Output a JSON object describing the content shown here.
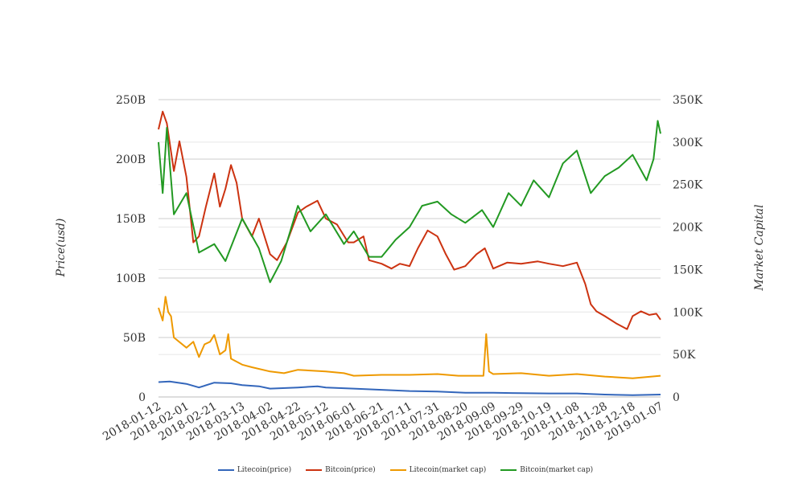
{
  "chart_data": {
    "type": "line",
    "title": "",
    "ylabel_left": "Price(usd)",
    "ylabel_right": "Market Capital",
    "x_start": "2018-01-12",
    "x_end": "2019-01-07",
    "x_ticks": [
      "2018-01-12",
      "2018-02-01",
      "2018-02-21",
      "2018-03-13",
      "2018-04-02",
      "2018-04-22",
      "2018-05-12",
      "2018-06-01",
      "2018-06-21",
      "2018-07-11",
      "2018-07-31",
      "2018-08-20",
      "2018-09-09",
      "2018-09-29",
      "2018-10-19",
      "2018-11-08",
      "2018-11-28",
      "2018-12-18",
      "2019-01-07"
    ],
    "ylim_left": [
      0,
      250000000000
    ],
    "ylim_right": [
      0,
      350000
    ],
    "y_ticks_left": [
      "0",
      "50B",
      "100B",
      "150B",
      "200B",
      "250B"
    ],
    "y_ticks_right": [
      "0",
      "50K",
      "100K",
      "150K",
      "200K",
      "250K",
      "300K",
      "350K"
    ],
    "grid": true,
    "legend_position": "bottom",
    "series": [
      {
        "name": "Litecoin(price)",
        "axis": "left",
        "color": "#3366bb",
        "points": [
          [
            "2018-01-12",
            12500000000.0
          ],
          [
            "2018-01-20",
            13000000000.0
          ],
          [
            "2018-02-01",
            11000000000.0
          ],
          [
            "2018-02-10",
            8000000000.0
          ],
          [
            "2018-02-21",
            12000000000.0
          ],
          [
            "2018-03-05",
            11500000000.0
          ],
          [
            "2018-03-13",
            10000000000.0
          ],
          [
            "2018-03-25",
            9000000000.0
          ],
          [
            "2018-04-02",
            7000000000.0
          ],
          [
            "2018-04-22",
            8000000000.0
          ],
          [
            "2018-05-06",
            9000000000.0
          ],
          [
            "2018-05-12",
            8000000000.0
          ],
          [
            "2018-06-01",
            7000000000.0
          ],
          [
            "2018-06-21",
            6000000000.0
          ],
          [
            "2018-07-11",
            5000000000.0
          ],
          [
            "2018-07-31",
            4500000000.0
          ],
          [
            "2018-08-20",
            3500000000.0
          ],
          [
            "2018-09-09",
            3500000000.0
          ],
          [
            "2018-09-29",
            3200000000.0
          ],
          [
            "2018-10-19",
            3000000000.0
          ],
          [
            "2018-11-08",
            3000000000.0
          ],
          [
            "2018-11-28",
            2000000000.0
          ],
          [
            "2018-12-18",
            1500000000.0
          ],
          [
            "2019-01-07",
            2000000000.0
          ]
        ]
      },
      {
        "name": "Bitcoin(price)",
        "axis": "left",
        "color": "#cc3311",
        "points": [
          [
            "2018-01-12",
            225000000000.0
          ],
          [
            "2018-01-15",
            240000000000.0
          ],
          [
            "2018-01-18",
            230000000000.0
          ],
          [
            "2018-01-23",
            190000000000.0
          ],
          [
            "2018-01-27",
            215000000000.0
          ],
          [
            "2018-02-01",
            185000000000.0
          ],
          [
            "2018-02-06",
            130000000000.0
          ],
          [
            "2018-02-10",
            135000000000.0
          ],
          [
            "2018-02-15",
            160000000000.0
          ],
          [
            "2018-02-21",
            188000000000.0
          ],
          [
            "2018-02-25",
            160000000000.0
          ],
          [
            "2018-03-01",
            175000000000.0
          ],
          [
            "2018-03-05",
            195000000000.0
          ],
          [
            "2018-03-09",
            180000000000.0
          ],
          [
            "2018-03-13",
            150000000000.0
          ],
          [
            "2018-03-20",
            135000000000.0
          ],
          [
            "2018-03-25",
            150000000000.0
          ],
          [
            "2018-04-02",
            120000000000.0
          ],
          [
            "2018-04-07",
            115000000000.0
          ],
          [
            "2018-04-14",
            130000000000.0
          ],
          [
            "2018-04-22",
            155000000000.0
          ],
          [
            "2018-04-28",
            160000000000.0
          ],
          [
            "2018-05-06",
            165000000000.0
          ],
          [
            "2018-05-12",
            150000000000.0
          ],
          [
            "2018-05-20",
            145000000000.0
          ],
          [
            "2018-05-28",
            130000000000.0
          ],
          [
            "2018-06-01",
            130000000000.0
          ],
          [
            "2018-06-08",
            135000000000.0
          ],
          [
            "2018-06-12",
            115000000000.0
          ],
          [
            "2018-06-21",
            112000000000.0
          ],
          [
            "2018-06-28",
            108000000000.0
          ],
          [
            "2018-07-04",
            112000000000.0
          ],
          [
            "2018-07-11",
            110000000000.0
          ],
          [
            "2018-07-17",
            125000000000.0
          ],
          [
            "2018-07-24",
            140000000000.0
          ],
          [
            "2018-07-31",
            135000000000.0
          ],
          [
            "2018-08-06",
            120000000000.0
          ],
          [
            "2018-08-12",
            107000000000.0
          ],
          [
            "2018-08-20",
            110000000000.0
          ],
          [
            "2018-08-28",
            120000000000.0
          ],
          [
            "2018-09-03",
            125000000000.0
          ],
          [
            "2018-09-09",
            108000000000.0
          ],
          [
            "2018-09-19",
            113000000000.0
          ],
          [
            "2018-09-29",
            112000000000.0
          ],
          [
            "2018-10-11",
            114000000000.0
          ],
          [
            "2018-10-19",
            112000000000.0
          ],
          [
            "2018-10-29",
            110000000000.0
          ],
          [
            "2018-11-08",
            113000000000.0
          ],
          [
            "2018-11-14",
            95000000000.0
          ],
          [
            "2018-11-18",
            78000000000.0
          ],
          [
            "2018-11-22",
            72000000000.0
          ],
          [
            "2018-11-28",
            68000000000.0
          ],
          [
            "2018-12-06",
            62000000000.0
          ],
          [
            "2018-12-14",
            57000000000.0
          ],
          [
            "2018-12-18",
            68000000000.0
          ],
          [
            "2018-12-24",
            72000000000.0
          ],
          [
            "2018-12-30",
            69000000000.0
          ],
          [
            "2019-01-04",
            70000000000.0
          ],
          [
            "2019-01-07",
            65000000000.0
          ]
        ]
      },
      {
        "name": "Litecoin(market cap)",
        "axis": "right",
        "color": "#ee9900",
        "points": [
          [
            "2018-01-12",
            105000
          ],
          [
            "2018-01-15",
            90000
          ],
          [
            "2018-01-17",
            118000
          ],
          [
            "2018-01-19",
            100000
          ],
          [
            "2018-01-21",
            95000
          ],
          [
            "2018-01-23",
            70000
          ],
          [
            "2018-02-01",
            58000
          ],
          [
            "2018-02-06",
            65000
          ],
          [
            "2018-02-10",
            47000
          ],
          [
            "2018-02-14",
            62000
          ],
          [
            "2018-02-18",
            65000
          ],
          [
            "2018-02-21",
            73000
          ],
          [
            "2018-02-25",
            50000
          ],
          [
            "2018-03-01",
            55000
          ],
          [
            "2018-03-03",
            74000
          ],
          [
            "2018-03-05",
            45000
          ],
          [
            "2018-03-13",
            38000
          ],
          [
            "2018-03-20",
            35000
          ],
          [
            "2018-04-02",
            30000
          ],
          [
            "2018-04-12",
            28000
          ],
          [
            "2018-04-22",
            32000
          ],
          [
            "2018-05-12",
            30000
          ],
          [
            "2018-05-25",
            28000
          ],
          [
            "2018-06-01",
            25000
          ],
          [
            "2018-06-21",
            26000
          ],
          [
            "2018-07-11",
            26000
          ],
          [
            "2018-07-31",
            27000
          ],
          [
            "2018-08-15",
            25000
          ],
          [
            "2018-09-02",
            25000
          ],
          [
            "2018-09-04",
            74000
          ],
          [
            "2018-09-06",
            30000
          ],
          [
            "2018-09-09",
            27000
          ],
          [
            "2018-09-29",
            28000
          ],
          [
            "2018-10-19",
            25000
          ],
          [
            "2018-11-08",
            27000
          ],
          [
            "2018-11-28",
            24000
          ],
          [
            "2018-12-18",
            22000
          ],
          [
            "2019-01-07",
            25000
          ]
        ]
      },
      {
        "name": "Bitcoin(market cap)",
        "axis": "right",
        "color": "#229922",
        "points": [
          [
            "2018-01-12",
            300000
          ],
          [
            "2018-01-15",
            240000
          ],
          [
            "2018-01-18",
            317000
          ],
          [
            "2018-01-23",
            215000
          ],
          [
            "2018-02-01",
            240000
          ],
          [
            "2018-02-10",
            170000
          ],
          [
            "2018-02-21",
            180000
          ],
          [
            "2018-03-01",
            160000
          ],
          [
            "2018-03-13",
            210000
          ],
          [
            "2018-03-25",
            175000
          ],
          [
            "2018-04-02",
            135000
          ],
          [
            "2018-04-10",
            160000
          ],
          [
            "2018-04-22",
            225000
          ],
          [
            "2018-05-01",
            195000
          ],
          [
            "2018-05-12",
            215000
          ],
          [
            "2018-05-25",
            180000
          ],
          [
            "2018-06-01",
            195000
          ],
          [
            "2018-06-12",
            165000
          ],
          [
            "2018-06-21",
            165000
          ],
          [
            "2018-07-01",
            185000
          ],
          [
            "2018-07-11",
            200000
          ],
          [
            "2018-07-20",
            225000
          ],
          [
            "2018-07-31",
            230000
          ],
          [
            "2018-08-10",
            215000
          ],
          [
            "2018-08-20",
            205000
          ],
          [
            "2018-09-01",
            220000
          ],
          [
            "2018-09-09",
            200000
          ],
          [
            "2018-09-20",
            240000
          ],
          [
            "2018-09-29",
            225000
          ],
          [
            "2018-10-08",
            255000
          ],
          [
            "2018-10-19",
            235000
          ],
          [
            "2018-10-29",
            275000
          ],
          [
            "2018-11-08",
            290000
          ],
          [
            "2018-11-18",
            240000
          ],
          [
            "2018-11-28",
            260000
          ],
          [
            "2018-12-08",
            270000
          ],
          [
            "2018-12-18",
            285000
          ],
          [
            "2018-12-28",
            255000
          ],
          [
            "2019-01-02",
            280000
          ],
          [
            "2019-01-05",
            325000
          ],
          [
            "2019-01-07",
            310000
          ]
        ]
      }
    ]
  }
}
